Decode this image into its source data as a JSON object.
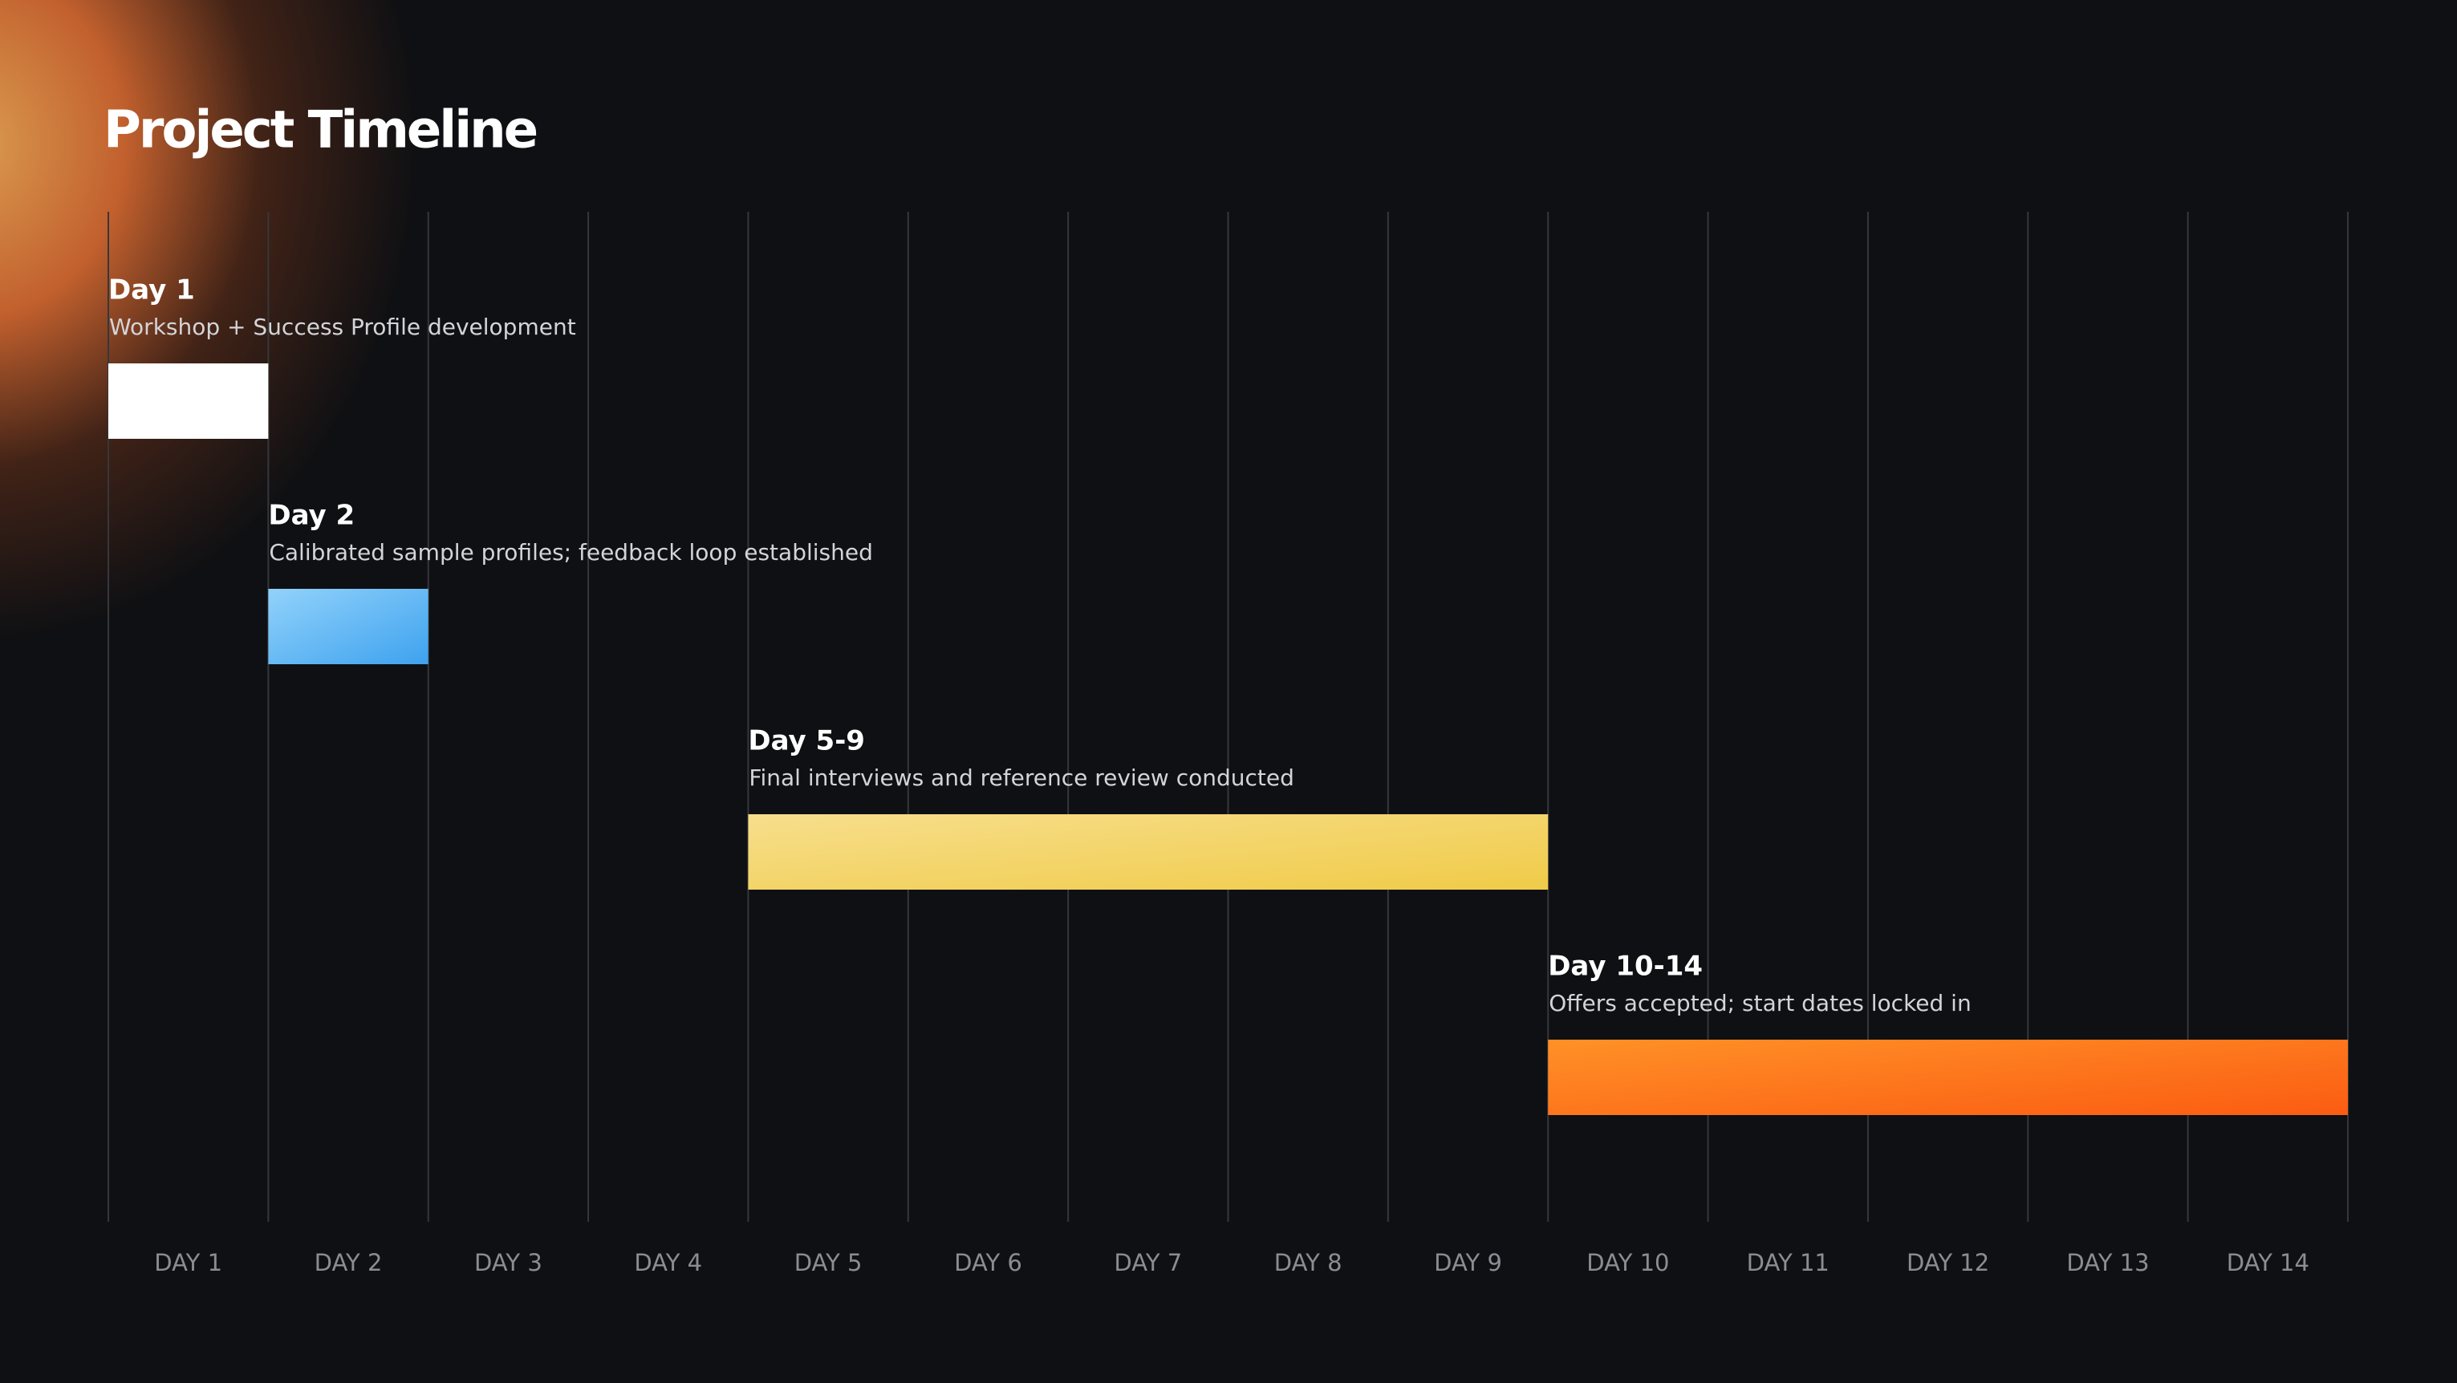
{
  "chart_data": {
    "type": "gantt",
    "title": "Project Timeline",
    "categories": [
      "DAY 1",
      "DAY 2",
      "DAY 3",
      "DAY 4",
      "DAY 5",
      "DAY 6",
      "DAY 7",
      "DAY 8",
      "DAY 9",
      "DAY 10",
      "DAY 11",
      "DAY 12",
      "DAY 13",
      "DAY 14"
    ],
    "grid": true,
    "tasks": [
      {
        "label": "Day 1",
        "description": "Workshop + Success Profile development",
        "start": 1,
        "end": 1,
        "colors": [
          "#ffffff",
          "#ffffff"
        ]
      },
      {
        "label": "Day 2",
        "description": "Calibrated sample profiles; feedback loop established",
        "start": 2,
        "end": 2,
        "colors": [
          "#92d2fb",
          "#3ea2ee"
        ]
      },
      {
        "label": "Day 5-9",
        "description": "Final interviews and reference review conducted",
        "start": 5,
        "end": 9,
        "colors": [
          "#f7de8c",
          "#f0cb48"
        ]
      },
      {
        "label": "Day 10-14",
        "description": "Offers accepted; start dates locked in",
        "start": 10,
        "end": 14,
        "colors": [
          "#ff9127",
          "#fb5c12"
        ]
      }
    ]
  }
}
